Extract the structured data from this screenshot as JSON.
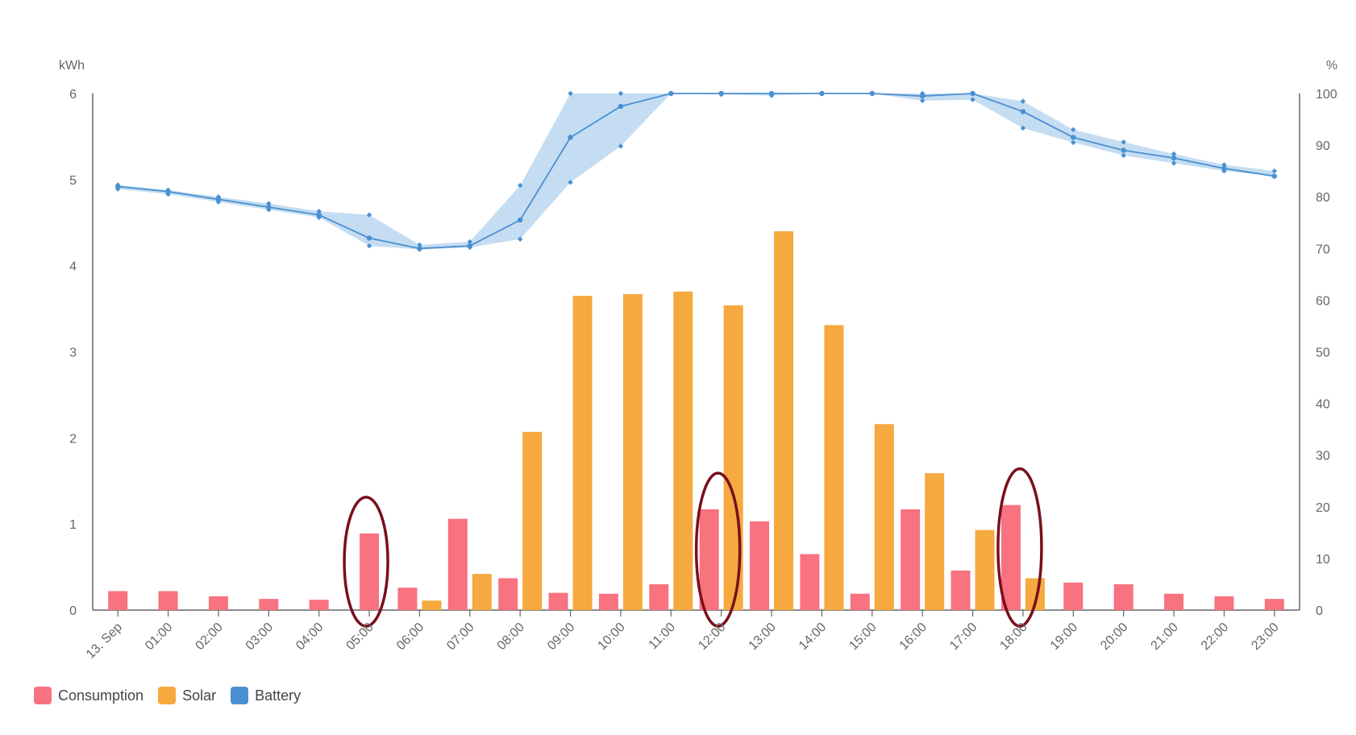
{
  "chart_data": {
    "type": "bar",
    "categories": [
      "13. Sep",
      "01:00",
      "02:00",
      "03:00",
      "04:00",
      "05:00",
      "06:00",
      "07:00",
      "08:00",
      "09:00",
      "10:00",
      "11:00",
      "12:00",
      "13:00",
      "14:00",
      "15:00",
      "16:00",
      "17:00",
      "18:00",
      "19:00",
      "20:00",
      "21:00",
      "22:00",
      "23:00"
    ],
    "left_axis": {
      "unit": "kWh",
      "range": [
        0,
        6
      ],
      "ticks": [
        "0",
        "1",
        "2",
        "3",
        "4",
        "5",
        "6"
      ]
    },
    "right_axis": {
      "unit": "%",
      "range": [
        0,
        100
      ],
      "ticks": [
        "0",
        "10",
        "20",
        "30",
        "40",
        "50",
        "60",
        "70",
        "80",
        "90",
        "100"
      ]
    },
    "series": [
      {
        "name": "Consumption",
        "type": "bar",
        "axis": "left",
        "color": "#f8727f",
        "values": [
          0.22,
          0.22,
          0.16,
          0.13,
          0.12,
          0.89,
          0.26,
          1.06,
          0.37,
          0.2,
          0.19,
          0.3,
          1.17,
          1.03,
          0.65,
          0.19,
          1.17,
          0.46,
          1.22,
          0.32,
          0.3,
          0.19,
          0.16,
          0.13
        ]
      },
      {
        "name": "Solar",
        "type": "bar",
        "axis": "left",
        "color": "#f5a93f",
        "values": [
          0,
          0,
          0,
          0,
          0,
          0,
          0.11,
          0.42,
          2.07,
          3.65,
          3.67,
          3.7,
          3.54,
          4.4,
          3.31,
          2.16,
          1.59,
          0.93,
          0.37,
          0,
          0,
          0,
          0,
          0
        ]
      },
      {
        "name": "Battery",
        "type": "arearange-line",
        "axis": "right",
        "color": "#4a90d0",
        "range_color": "#c5ddf2",
        "values": [
          82,
          81,
          79.5,
          78,
          76.5,
          72,
          70,
          70.5,
          75.5,
          91.5,
          97.5,
          100,
          100,
          100,
          100,
          100,
          99.5,
          100,
          96.5,
          91.5,
          89,
          87.5,
          85.5,
          84
        ],
        "low": [
          81.5,
          80.5,
          79,
          77.5,
          76,
          70.5,
          69.8,
          70.2,
          71.8,
          82.8,
          89.8,
          100,
          99.8,
          99.6,
          100,
          100,
          98.6,
          98.8,
          93.3,
          90.5,
          88,
          86.5,
          85,
          84
        ],
        "high": [
          82.3,
          81.3,
          80,
          78.7,
          77.2,
          76.5,
          70.7,
          71.3,
          82.2,
          100,
          100,
          100,
          100,
          99.9,
          100,
          100,
          100,
          100,
          98.5,
          93,
          90.6,
          88.3,
          86.2,
          85
        ]
      }
    ],
    "legend": {
      "position": "bottom-left"
    },
    "grid": false
  },
  "legend_items": [
    {
      "label": "Consumption",
      "color": "#f8727f"
    },
    {
      "label": "Solar",
      "color": "#f5a93f"
    },
    {
      "label": "Battery",
      "color": "#4a90d0"
    }
  ],
  "annotations": {
    "highlighted_categories": [
      "05:00",
      "12:00",
      "18:00"
    ],
    "color": "#7a0f1c"
  }
}
